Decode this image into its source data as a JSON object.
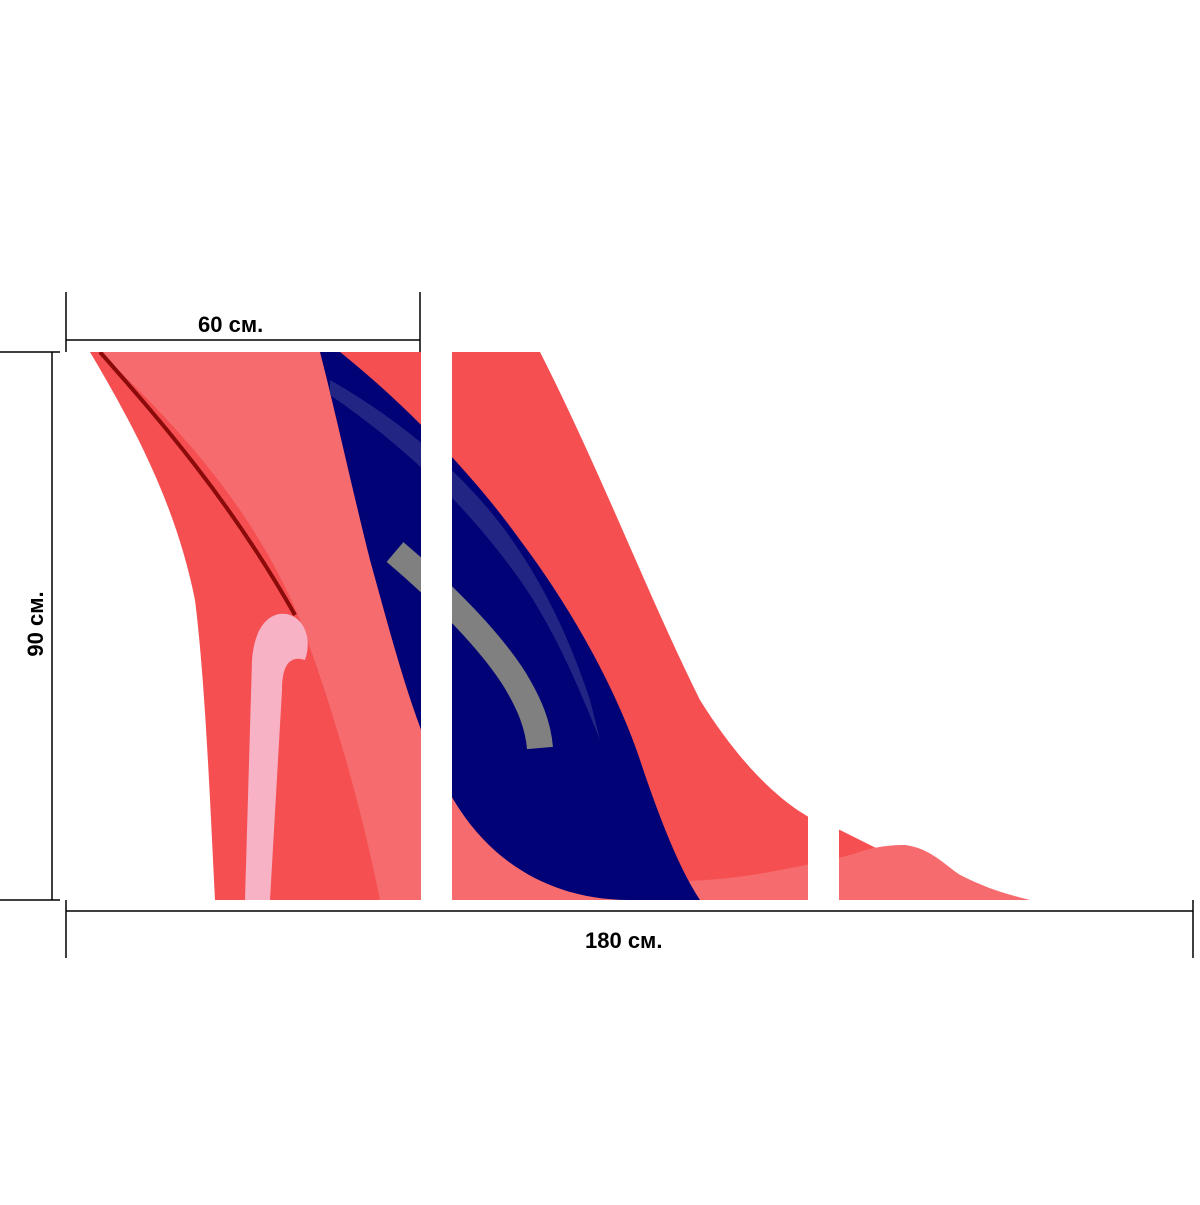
{
  "dimensions": {
    "panel_width_label": "60 см.",
    "total_width_label": "180 см.",
    "height_label": "90 см."
  },
  "artwork": {
    "subject": "high-heel shoe",
    "panel_count": 3,
    "colors": {
      "shoe_main": "#f54f52",
      "shoe_light": "#f66b6d",
      "insole": "#000275",
      "heel_highlight": "#f7b2c6",
      "stitch_dark": "#8b0a0a",
      "stripe_grey": "#808080",
      "background": "#ffffff"
    }
  }
}
